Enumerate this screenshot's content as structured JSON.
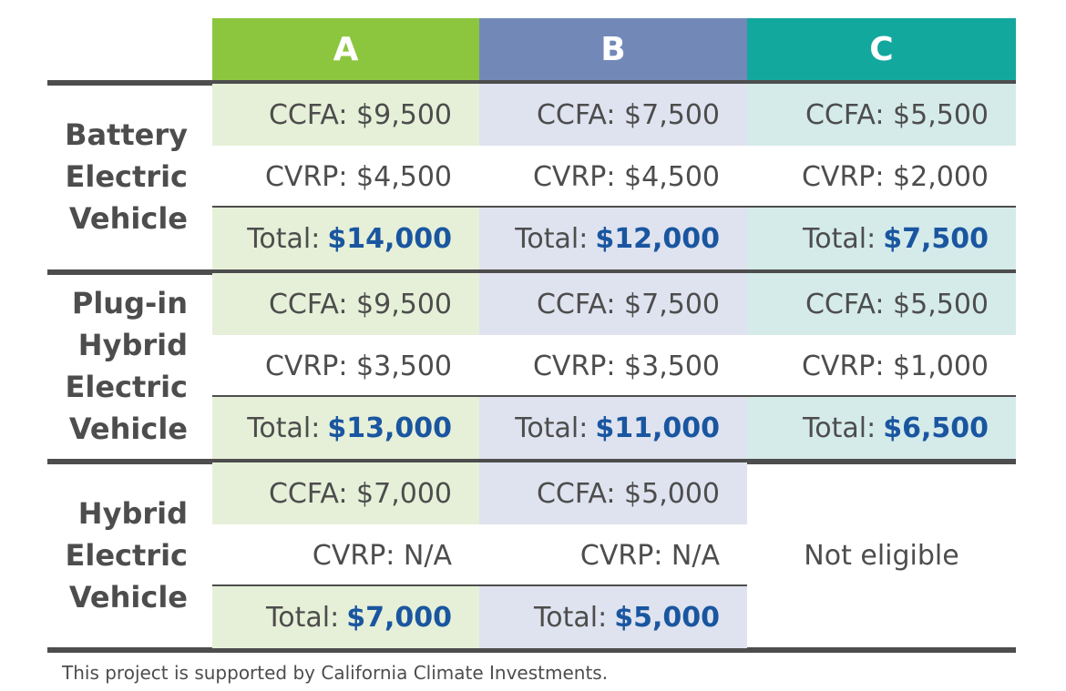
{
  "chart_data": {
    "type": "table",
    "columns": [
      "A",
      "B",
      "C"
    ],
    "column_colors": [
      "#8cc63f",
      "#7289b8",
      "#13a89e"
    ],
    "column_tints": [
      "#e6f0d8",
      "#dfe3ef",
      "#d5ebea"
    ],
    "rows": [
      {
        "label_lines": [
          "Battery",
          "Electric",
          "Vehicle"
        ],
        "cells": [
          {
            "ccfa": "CCFA: $9,500",
            "cvrp": "CVRP: $4,500",
            "total_label": "Total:",
            "total_value": "$14,000"
          },
          {
            "ccfa": "CCFA: $7,500",
            "cvrp": "CVRP: $4,500",
            "total_label": "Total:",
            "total_value": "$12,000"
          },
          {
            "ccfa": "CCFA: $5,500",
            "cvrp": "CVRP: $2,000",
            "total_label": "Total:",
            "total_value": "$7,500"
          }
        ]
      },
      {
        "label_lines": [
          "Plug-in",
          "Hybrid",
          "Electric",
          "Vehicle"
        ],
        "cells": [
          {
            "ccfa": "CCFA: $9,500",
            "cvrp": "CVRP: $3,500",
            "total_label": "Total:",
            "total_value": "$13,000"
          },
          {
            "ccfa": "CCFA: $7,500",
            "cvrp": "CVRP: $3,500",
            "total_label": "Total:",
            "total_value": "$11,000"
          },
          {
            "ccfa": "CCFA: $5,500",
            "cvrp": "CVRP: $1,000",
            "total_label": "Total:",
            "total_value": "$6,500"
          }
        ]
      },
      {
        "label_lines": [
          "Hybrid",
          "Electric",
          "Vehicle"
        ],
        "cells": [
          {
            "ccfa": "CCFA: $7,000",
            "cvrp": "CVRP: N/A",
            "total_label": "Total:",
            "total_value": "$7,000"
          },
          {
            "ccfa": "CCFA: $5,000",
            "cvrp": "CVRP: N/A",
            "total_label": "Total:",
            "total_value": "$5,000"
          },
          null
        ],
        "not_eligible": "Not eligible"
      }
    ],
    "footnote": "This project is supported by California Climate Investments."
  }
}
